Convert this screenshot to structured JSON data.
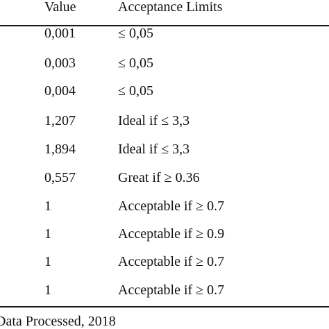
{
  "table": {
    "headers": {
      "value": "Value",
      "limits": "Acceptance Limits"
    },
    "rows": [
      {
        "value": "0,001",
        "limit": "≤ 0,05"
      },
      {
        "value": "0,003",
        "limit": "≤ 0,05"
      },
      {
        "value": "0,004",
        "limit": "≤ 0,05"
      },
      {
        "value": "1,207",
        "limit": "Ideal if ≤ 3,3"
      },
      {
        "value": "1,894",
        "limit": "Ideal if ≤ 3,3"
      },
      {
        "value": "0,557",
        "limit": "Great if ≥ 0.36"
      },
      {
        "value": "1",
        "limit": "Acceptable if ≥ 0.7"
      },
      {
        "value": "1",
        "limit": "Acceptable if ≥ 0.9"
      },
      {
        "value": "1",
        "limit": "Acceptable if ≥ 0.7"
      },
      {
        "value": "1",
        "limit": "Acceptable if ≥ 0.7"
      }
    ]
  },
  "source_note": "Data Processed, 2018"
}
